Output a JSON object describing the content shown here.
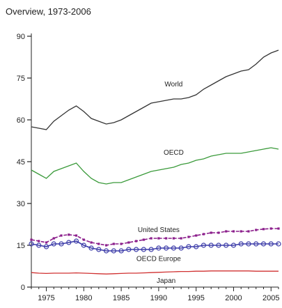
{
  "chart_data": {
    "type": "line",
    "title": "Overview, 1973-2006",
    "xlabel": "",
    "ylabel": "",
    "xlim": [
      1973,
      2006
    ],
    "ylim": [
      0,
      90
    ],
    "yticks": [
      0,
      15,
      30,
      45,
      60,
      75,
      90
    ],
    "xticks": [
      1975,
      1980,
      1985,
      1990,
      1995,
      2000,
      2005
    ],
    "series": [
      {
        "name": "World",
        "color": "#333333",
        "marker": "none",
        "x": [
          1973,
          1974,
          1975,
          1976,
          1977,
          1978,
          1979,
          1980,
          1981,
          1982,
          1983,
          1984,
          1985,
          1986,
          1987,
          1988,
          1989,
          1990,
          1991,
          1992,
          1993,
          1994,
          1995,
          1996,
          1997,
          1998,
          1999,
          2000,
          2001,
          2002,
          2003,
          2004,
          2005,
          2006
        ],
        "y": [
          57.5,
          57,
          56.5,
          59.5,
          61.5,
          63.5,
          65,
          63,
          60.5,
          59.5,
          58.5,
          59,
          60,
          61.5,
          63,
          64.5,
          66,
          66.5,
          67,
          67.5,
          67.5,
          68,
          69,
          71,
          72.5,
          74,
          75.5,
          76.5,
          77.5,
          78,
          80,
          82.5,
          84,
          85
        ]
      },
      {
        "name": "OECD",
        "color": "#3a9a3a",
        "marker": "none",
        "x": [
          1973,
          1974,
          1975,
          1976,
          1977,
          1978,
          1979,
          1980,
          1981,
          1982,
          1983,
          1984,
          1985,
          1986,
          1987,
          1988,
          1989,
          1990,
          1991,
          1992,
          1993,
          1994,
          1995,
          1996,
          1997,
          1998,
          1999,
          2000,
          2001,
          2002,
          2003,
          2004,
          2005,
          2006
        ],
        "y": [
          42,
          40.5,
          39,
          41.5,
          42.5,
          43.5,
          44.5,
          41.5,
          39,
          37.5,
          37,
          37.5,
          37.5,
          38.5,
          39.5,
          40.5,
          41.5,
          42,
          42.5,
          43,
          44,
          44.5,
          45.5,
          46,
          47,
          47.5,
          48,
          48,
          48,
          48.5,
          49,
          49.5,
          50,
          49.5
        ]
      },
      {
        "name": "United States",
        "color": "#8b1e8b",
        "marker": "square",
        "x": [
          1973,
          1974,
          1975,
          1976,
          1977,
          1978,
          1979,
          1980,
          1981,
          1982,
          1983,
          1984,
          1985,
          1986,
          1987,
          1988,
          1989,
          1990,
          1991,
          1992,
          1993,
          1994,
          1995,
          1996,
          1997,
          1998,
          1999,
          2000,
          2001,
          2002,
          2003,
          2004,
          2005,
          2006
        ],
        "y": [
          17,
          16.5,
          16,
          17.5,
          18.5,
          18.8,
          18.5,
          17,
          16,
          15.5,
          15,
          15.5,
          15.5,
          16,
          16.5,
          17,
          17.5,
          17.5,
          17.5,
          17.5,
          17.5,
          18,
          18.5,
          19,
          19.5,
          19.5,
          20,
          20,
          20,
          20,
          20.5,
          20.8,
          21,
          21
        ]
      },
      {
        "name": "OECD Europe",
        "color": "#3b3ba8",
        "marker": "circle",
        "x": [
          1973,
          1974,
          1975,
          1976,
          1977,
          1978,
          1979,
          1980,
          1981,
          1982,
          1983,
          1984,
          1985,
          1986,
          1987,
          1988,
          1989,
          1990,
          1991,
          1992,
          1993,
          1994,
          1995,
          1996,
          1997,
          1998,
          1999,
          2000,
          2001,
          2002,
          2003,
          2004,
          2005,
          2006
        ],
        "y": [
          15.5,
          15,
          14.5,
          15.5,
          15.5,
          16,
          16.5,
          15,
          14,
          13.5,
          13,
          13,
          13,
          13.5,
          13.5,
          13.5,
          13.5,
          14,
          14,
          14,
          14,
          14.5,
          14.5,
          15,
          15,
          15,
          15,
          15,
          15.5,
          15.5,
          15.5,
          15.5,
          15.5,
          15.5
        ]
      },
      {
        "name": "Japan",
        "color": "#d03030",
        "marker": "none",
        "x": [
          1973,
          1974,
          1975,
          1976,
          1977,
          1978,
          1979,
          1980,
          1981,
          1982,
          1983,
          1984,
          1985,
          1986,
          1987,
          1988,
          1989,
          1990,
          1991,
          1992,
          1993,
          1994,
          1995,
          1996,
          1997,
          1998,
          1999,
          2000,
          2001,
          2002,
          2003,
          2004,
          2005,
          2006
        ],
        "y": [
          5.2,
          5,
          4.9,
          5,
          5,
          5,
          5.1,
          5,
          4.9,
          4.8,
          4.7,
          4.8,
          4.9,
          5,
          5,
          5.1,
          5.2,
          5.3,
          5.4,
          5.5,
          5.6,
          5.6,
          5.7,
          5.7,
          5.8,
          5.8,
          5.8,
          5.8,
          5.8,
          5.8,
          5.7,
          5.7,
          5.7,
          5.7
        ]
      }
    ]
  }
}
